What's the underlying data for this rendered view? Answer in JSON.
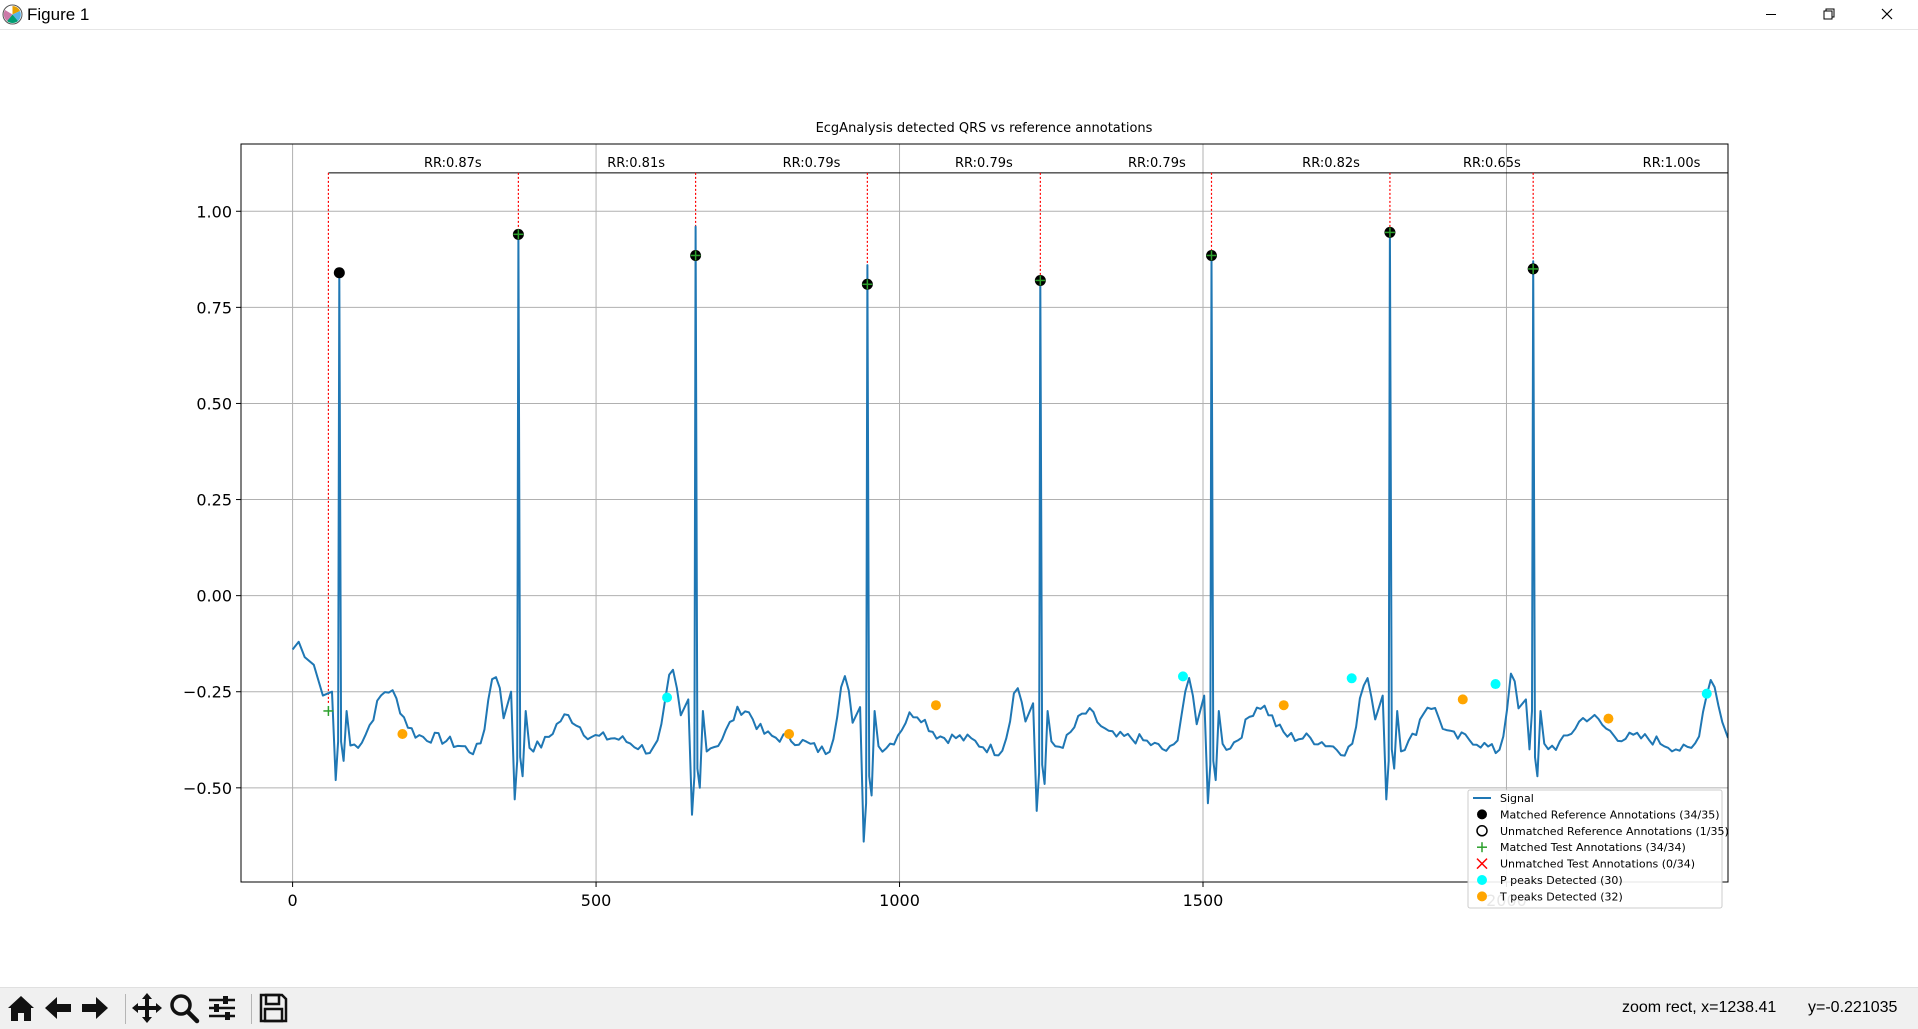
{
  "window": {
    "title": "Figure 1",
    "icons": {
      "app": "matplotlib-icon",
      "minimize": "minimize-icon",
      "maximize": "restore-icon",
      "close": "close-icon"
    }
  },
  "chart_data": {
    "type": "line",
    "title": "EcgAnalysis detected QRS vs reference annotations",
    "xlabel": "",
    "ylabel": "",
    "xlim": [
      -85,
      2365
    ],
    "ylim": [
      -0.745,
      1.175
    ],
    "xticks": [
      0,
      500,
      1000,
      1500,
      2000
    ],
    "xtick_labels": [
      "0",
      "500",
      "1000",
      "1500",
      "2000"
    ],
    "yticks": [
      -0.5,
      -0.25,
      0.0,
      0.25,
      0.5,
      0.75,
      1.0
    ],
    "ytick_labels": [
      "−0.50",
      "−0.25",
      "0.00",
      "0.25",
      "0.50",
      "0.75",
      "1.00"
    ],
    "grid": true,
    "legend_position": "lower-right",
    "colors": {
      "signal": "#1f77b4",
      "matched_ref": "#000000",
      "test": "#2ca02c",
      "unmatched_test": "#ff0000",
      "p": "#00ffff",
      "t": "#ffa500",
      "rr_line": "#ff0000",
      "grid": "#b0b0b0"
    },
    "legend": [
      {
        "label": "Signal",
        "marker": "line",
        "color": "#1f77b4"
      },
      {
        "label": "Matched Reference Annotations (34/35)",
        "marker": "filled-circle",
        "color": "#000000"
      },
      {
        "label": "Unmatched Reference Annotations (1/35)",
        "marker": "hollow-circle",
        "color": "#000000"
      },
      {
        "label": "Matched Test Annotations (34/34)",
        "marker": "plus",
        "color": "#2ca02c"
      },
      {
        "label": "Unmatched Test Annotations (0/34)",
        "marker": "x",
        "color": "#ff0000"
      },
      {
        "label": "P peaks Detected (30)",
        "marker": "filled-circle",
        "color": "#00ffff"
      },
      {
        "label": "T peaks Detected (32)",
        "marker": "filled-circle",
        "color": "#ffa500"
      }
    ],
    "rr_bracket_y": 1.1,
    "rr_markers_x": [
      59,
      372,
      664,
      947,
      1232,
      1514,
      1808,
      2044
    ],
    "rr_labels": [
      {
        "x": 264,
        "text": "RR:0.87s"
      },
      {
        "x": 566,
        "text": "RR:0.81s"
      },
      {
        "x": 855,
        "text": "RR:0.79s"
      },
      {
        "x": 1139,
        "text": "RR:0.79s"
      },
      {
        "x": 1424,
        "text": "RR:0.79s"
      },
      {
        "x": 1711,
        "text": "RR:0.82s"
      },
      {
        "x": 1976,
        "text": "RR:0.65s"
      },
      {
        "x": 2272,
        "text": "RR:1.00s"
      }
    ],
    "r_peaks": [
      {
        "x": 77,
        "y": 0.84
      },
      {
        "x": 372,
        "y": 0.94
      },
      {
        "x": 664,
        "y": 0.885
      },
      {
        "x": 947,
        "y": 0.81
      },
      {
        "x": 1232,
        "y": 0.82
      },
      {
        "x": 1514,
        "y": 0.885
      },
      {
        "x": 1808,
        "y": 0.945
      },
      {
        "x": 2044,
        "y": 0.85
      }
    ],
    "test_annotations": [
      {
        "x": 59,
        "y": -0.3
      },
      {
        "x": 372,
        "y": 0.94
      },
      {
        "x": 664,
        "y": 0.885
      },
      {
        "x": 947,
        "y": 0.81
      },
      {
        "x": 1232,
        "y": 0.82
      },
      {
        "x": 1514,
        "y": 0.885
      },
      {
        "x": 1808,
        "y": 0.945
      },
      {
        "x": 2044,
        "y": 0.85
      }
    ],
    "p_peaks": [
      {
        "x": 617,
        "y": -0.265
      },
      {
        "x": 1467,
        "y": -0.21
      },
      {
        "x": 1745,
        "y": -0.215
      },
      {
        "x": 1982,
        "y": -0.23
      },
      {
        "x": 2330,
        "y": -0.255
      }
    ],
    "t_peaks": [
      {
        "x": 181,
        "y": -0.36
      },
      {
        "x": 818,
        "y": -0.36
      },
      {
        "x": 1060,
        "y": -0.285
      },
      {
        "x": 1633,
        "y": -0.285
      },
      {
        "x": 1928,
        "y": -0.27
      },
      {
        "x": 2168,
        "y": -0.32
      }
    ],
    "signal": {
      "beats": [
        {
          "r": 77,
          "amp": 0.84,
          "qmin": -0.48,
          "smin": -0.43,
          "tpk": -0.23,
          "pre": -0.2
        },
        {
          "r": 372,
          "amp": 0.94,
          "qmin": -0.53,
          "smin": -0.47,
          "tpk": -0.3,
          "pre": -0.2
        },
        {
          "r": 664,
          "amp": 0.96,
          "qmin": -0.57,
          "smin": -0.5,
          "tpk": -0.28,
          "pre": -0.22
        },
        {
          "r": 947,
          "amp": 0.86,
          "qmin": -0.64,
          "smin": -0.52,
          "tpk": -0.29,
          "pre": -0.24
        },
        {
          "r": 1232,
          "amp": 0.82,
          "qmin": -0.56,
          "smin": -0.49,
          "tpk": -0.29,
          "pre": -0.23
        },
        {
          "r": 1514,
          "amp": 0.885,
          "qmin": -0.54,
          "smin": -0.48,
          "tpk": -0.27,
          "pre": -0.21
        },
        {
          "r": 1808,
          "amp": 0.945,
          "qmin": -0.53,
          "smin": -0.45,
          "tpk": -0.27,
          "pre": -0.21
        },
        {
          "r": 2044,
          "amp": 0.87,
          "qmin": -0.4,
          "smin": -0.47,
          "tpk": -0.3,
          "pre": -0.22
        }
      ],
      "start": {
        "x": 0,
        "y": -0.14
      },
      "end": {
        "x": 2365,
        "y": -0.37
      },
      "baseline": -0.39
    }
  },
  "toolbar": {
    "buttons": [
      {
        "name": "home-button",
        "icon": "home-icon"
      },
      {
        "name": "back-button",
        "icon": "arrow-left-icon"
      },
      {
        "name": "forward-button",
        "icon": "arrow-right-icon"
      },
      {
        "name": "pan-button",
        "icon": "move-icon"
      },
      {
        "name": "zoom-button",
        "icon": "magnifier-icon"
      },
      {
        "name": "configure-subplots-button",
        "icon": "sliders-icon"
      },
      {
        "name": "save-button",
        "icon": "floppy-disk-icon"
      }
    ],
    "status_zoom": "zoom rect, x=1238.41",
    "status_y": "y=-0.221035"
  }
}
